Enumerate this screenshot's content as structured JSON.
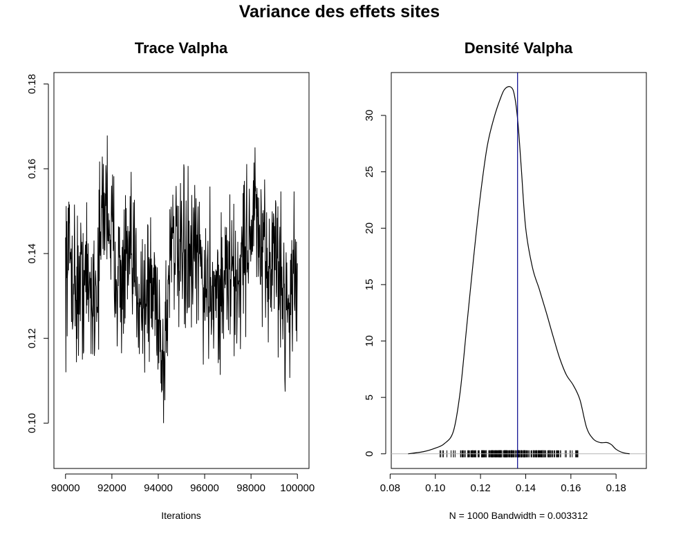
{
  "figure": {
    "title": "Variance des effets sites"
  },
  "chart_data": [
    {
      "type": "line",
      "title": "Trace Valpha",
      "xlabel": "Iterations",
      "ylabel": "",
      "xlim": [
        89500,
        100500
      ],
      "ylim": [
        0.0893,
        0.1827
      ],
      "x_ticks": [
        90000,
        92000,
        94000,
        96000,
        98000,
        100000
      ],
      "x_tick_labels": [
        "90000",
        "92000",
        "94000",
        "96000",
        "98000",
        "100000"
      ],
      "y_ticks": [
        0.1,
        0.12,
        0.14,
        0.16,
        0.18
      ],
      "y_tick_labels": [
        "0.10",
        "0.12",
        "0.14",
        "0.16",
        "0.18"
      ],
      "line_color": "#000000",
      "series": [
        {
          "x": [
            90000,
            90200,
            90400,
            90600,
            90800,
            91000,
            91200,
            91400,
            91600,
            91800,
            92000,
            92200,
            92400,
            92600,
            92800,
            93000,
            93200,
            93400,
            93600,
            93800,
            94000,
            94200,
            94400,
            94600,
            94800,
            95000,
            95200,
            95400,
            95600,
            95800,
            96000,
            96200,
            96400,
            96600,
            96800,
            97000,
            97200,
            97400,
            97600,
            97800,
            98000,
            98200,
            98400,
            98600,
            98800,
            99000,
            99200,
            99400,
            99600,
            99800,
            100000
          ],
          "y": [
            0.137,
            0.14,
            0.133,
            0.131,
            0.135,
            0.132,
            0.13,
            0.135,
            0.15,
            0.153,
            0.143,
            0.138,
            0.132,
            0.137,
            0.136,
            0.135,
            0.132,
            0.129,
            0.132,
            0.131,
            0.128,
            0.112,
            0.128,
            0.15,
            0.138,
            0.136,
            0.14,
            0.136,
            0.138,
            0.139,
            0.131,
            0.133,
            0.134,
            0.13,
            0.132,
            0.136,
            0.134,
            0.131,
            0.139,
            0.143,
            0.146,
            0.15,
            0.14,
            0.135,
            0.138,
            0.142,
            0.136,
            0.13,
            0.128,
            0.134,
            0.133
          ]
        }
      ]
    },
    {
      "type": "line",
      "title": "Densité Valpha",
      "xlabel": "N = 1000   Bandwidth = 0.003312",
      "ylabel": "",
      "xlim": [
        0.0805,
        0.1934
      ],
      "ylim": [
        -1.3,
        33.8
      ],
      "x_ticks": [
        0.08,
        0.1,
        0.12,
        0.14,
        0.16,
        0.18
      ],
      "x_tick_labels": [
        "0.08",
        "0.10",
        "0.12",
        "0.14",
        "0.16",
        "0.18"
      ],
      "y_ticks": [
        0,
        5,
        10,
        15,
        20,
        25,
        30
      ],
      "y_tick_labels": [
        "0",
        "5",
        "10",
        "15",
        "20",
        "25",
        "30"
      ],
      "line_color": "#000000",
      "mean_line": {
        "x": 0.1364,
        "color": "#00008b"
      },
      "zero_line_color": "#b3b3b3",
      "rug_range": [
        0.093,
        0.178
      ],
      "series": [
        {
          "x": [
            0.088,
            0.095,
            0.1,
            0.104,
            0.108,
            0.111,
            0.114,
            0.117,
            0.12,
            0.123,
            0.126,
            0.129,
            0.131,
            0.1335,
            0.135,
            0.1365,
            0.138,
            0.14,
            0.143,
            0.146,
            0.149,
            0.152,
            0.155,
            0.158,
            0.161,
            0.164,
            0.167,
            0.17,
            0.173,
            0.176,
            0.178,
            0.18,
            0.183,
            0.186
          ],
          "y": [
            0.0,
            0.2,
            0.5,
            0.9,
            2.0,
            5.5,
            11.5,
            17.5,
            23.0,
            27.3,
            29.8,
            31.6,
            32.4,
            32.5,
            31.8,
            29.5,
            25.5,
            20.0,
            16.5,
            14.6,
            12.6,
            10.5,
            8.5,
            7.0,
            6.1,
            4.8,
            2.3,
            1.3,
            1.0,
            1.0,
            0.8,
            0.4,
            0.1,
            0.0
          ]
        }
      ]
    }
  ]
}
